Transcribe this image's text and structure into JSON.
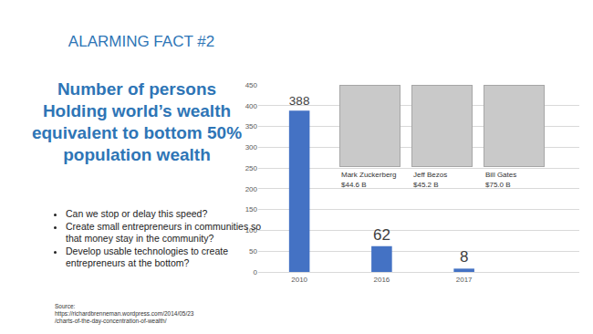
{
  "slide": {
    "header": "ALARMING FACT #2",
    "heading_lines": [
      "Number of persons",
      "Holding world’s wealth",
      "equivalent to bottom 50%",
      "population wealth"
    ],
    "bullets": [
      "Can we stop or delay this speed?",
      "Create small entrepreneurs in communities so that money stay in the community?",
      "Develop usable technologies to create entrepreneurs at the bottom?"
    ],
    "source_lines": [
      "Source:",
      "https://richardbrenneman.wordpress.com/2014/05/23",
      "/charts-of-the-day-concentration-of-wealth/"
    ]
  },
  "chart_data": {
    "type": "bar",
    "categories": [
      "2010",
      "2016",
      "2017"
    ],
    "values": [
      388,
      62,
      8
    ],
    "color": "#4472c4",
    "ylim": [
      0,
      450
    ],
    "yticks": [
      0,
      50,
      100,
      150,
      200,
      250,
      300,
      350,
      400,
      450
    ],
    "grid": true,
    "data_labels": true,
    "annotations": [
      [
        "Mark Zuckerberg",
        "$44.6 B"
      ],
      [
        "Jeff Bezos",
        "$45.2 B"
      ],
      [
        "Bill Gates",
        "$75.0 B"
      ]
    ]
  }
}
